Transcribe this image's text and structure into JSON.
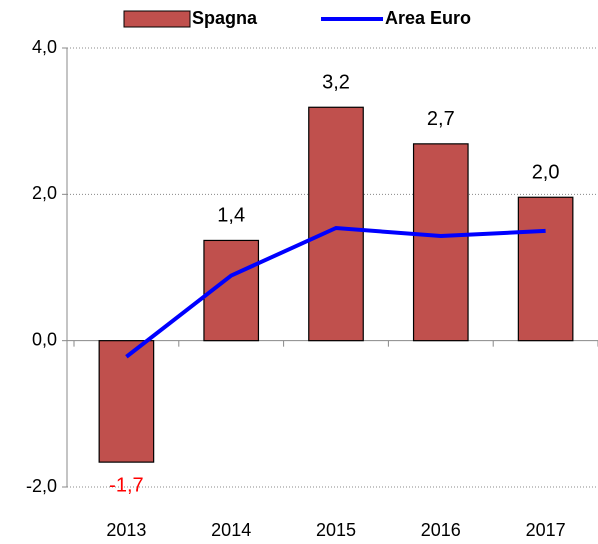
{
  "chart_data": {
    "type": "bar_line",
    "categories": [
      "2013",
      "2014",
      "2015",
      "2016",
      "2017"
    ],
    "series": [
      {
        "name": "Spagna",
        "type": "bar",
        "color": "#c0504d",
        "values": [
          -1.66,
          1.37,
          3.19,
          2.69,
          1.96
        ],
        "value_labels": [
          "-1,7",
          "1,4",
          "3,2",
          "2,7",
          "2,0"
        ],
        "negative_label_color": "#ff0000"
      },
      {
        "name": "Area Euro",
        "type": "line",
        "color": "#0000ff",
        "values": [
          -0.22,
          0.89,
          1.54,
          1.43,
          1.5
        ]
      }
    ],
    "ylim": [
      -2,
      4
    ],
    "yticks": [
      {
        "value": -2,
        "label": "-2,0"
      },
      {
        "value": 0,
        "label": "0,0"
      },
      {
        "value": 2,
        "label": "2,0"
      },
      {
        "value": 4,
        "label": "4,0"
      }
    ],
    "grid": true,
    "legend": "top"
  }
}
